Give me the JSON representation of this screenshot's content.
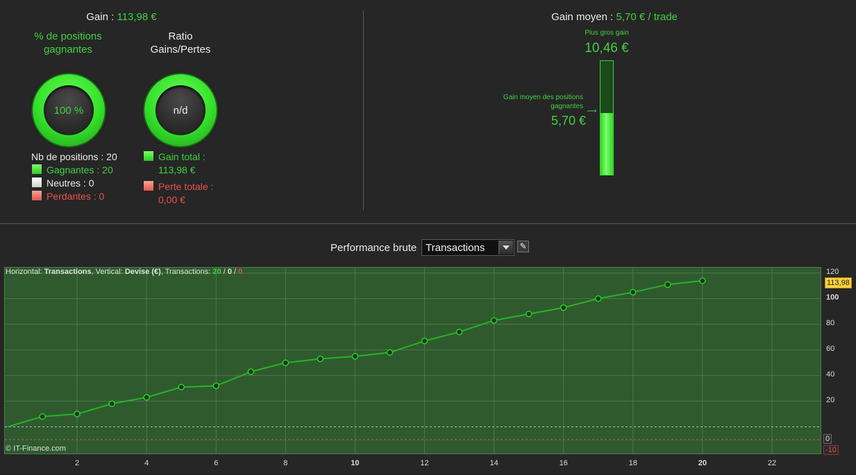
{
  "summary": {
    "gain_label": "Gain :",
    "gain_value": "113,98 €",
    "pct_title": "% de positions gagnantes",
    "pct_value": "100 %",
    "ratio_title": "Ratio Gains/Pertes",
    "ratio_value": "n/d",
    "nb_positions": "Nb de positions : 20",
    "gagnantes": "Gagnantes : 20",
    "neutres": "Neutres : 0",
    "perdantes": "Perdantes : 0",
    "gain_total_label": "Gain total :",
    "gain_total_value": "113,98 €",
    "perte_totale_label": "Perte totale :",
    "perte_totale_value": "0,00 €"
  },
  "moyen": {
    "label": "Gain moyen :",
    "value": "5,70 € / trade",
    "max_label": "Plus gros gain",
    "max_value": "10,46 €",
    "avg_label_1": "Gain moyen des positions",
    "avg_label_2": "gagnantes",
    "avg_value": "5,70 €",
    "fill_fraction": 0.545
  },
  "toolbar": {
    "perf_label": "Performance brute",
    "select_value": "Transactions"
  },
  "chart_info": {
    "h_label": "Horizontal:",
    "h_value": "Transactions",
    "v_label": ", Vertical:",
    "v_value": "Devise (€)",
    "t_label": ", Transactions:",
    "t_win": "20",
    "sep": "/",
    "t_neutral": "0",
    "t_loss": "0"
  },
  "copyright": "© IT-Finance.com",
  "colors": {
    "green": "#3fd23f",
    "red": "#e8514f",
    "chart_bg": "#2f5a2e",
    "line": "#27b327"
  },
  "chart_data": {
    "type": "line",
    "x": [
      0,
      1,
      2,
      3,
      4,
      5,
      6,
      7,
      8,
      9,
      10,
      11,
      12,
      13,
      14,
      15,
      16,
      17,
      18,
      19,
      20
    ],
    "series": [
      {
        "values": [
          0,
          8,
          10,
          18,
          23,
          31,
          32,
          43,
          50,
          53,
          55,
          58,
          67,
          74,
          83,
          88,
          93,
          100,
          105,
          111,
          113.98
        ]
      }
    ],
    "xticks": [
      "2",
      "4",
      "6",
      "8",
      "10",
      "12",
      "14",
      "16",
      "18",
      "20",
      "22"
    ],
    "yticks": [
      "120",
      "100",
      "80",
      "60",
      "40",
      "20",
      "0",
      "-10"
    ],
    "xlim": [
      0,
      23
    ],
    "ylim": [
      -10,
      122
    ],
    "last_value_label": "113,98",
    "grid": true
  }
}
